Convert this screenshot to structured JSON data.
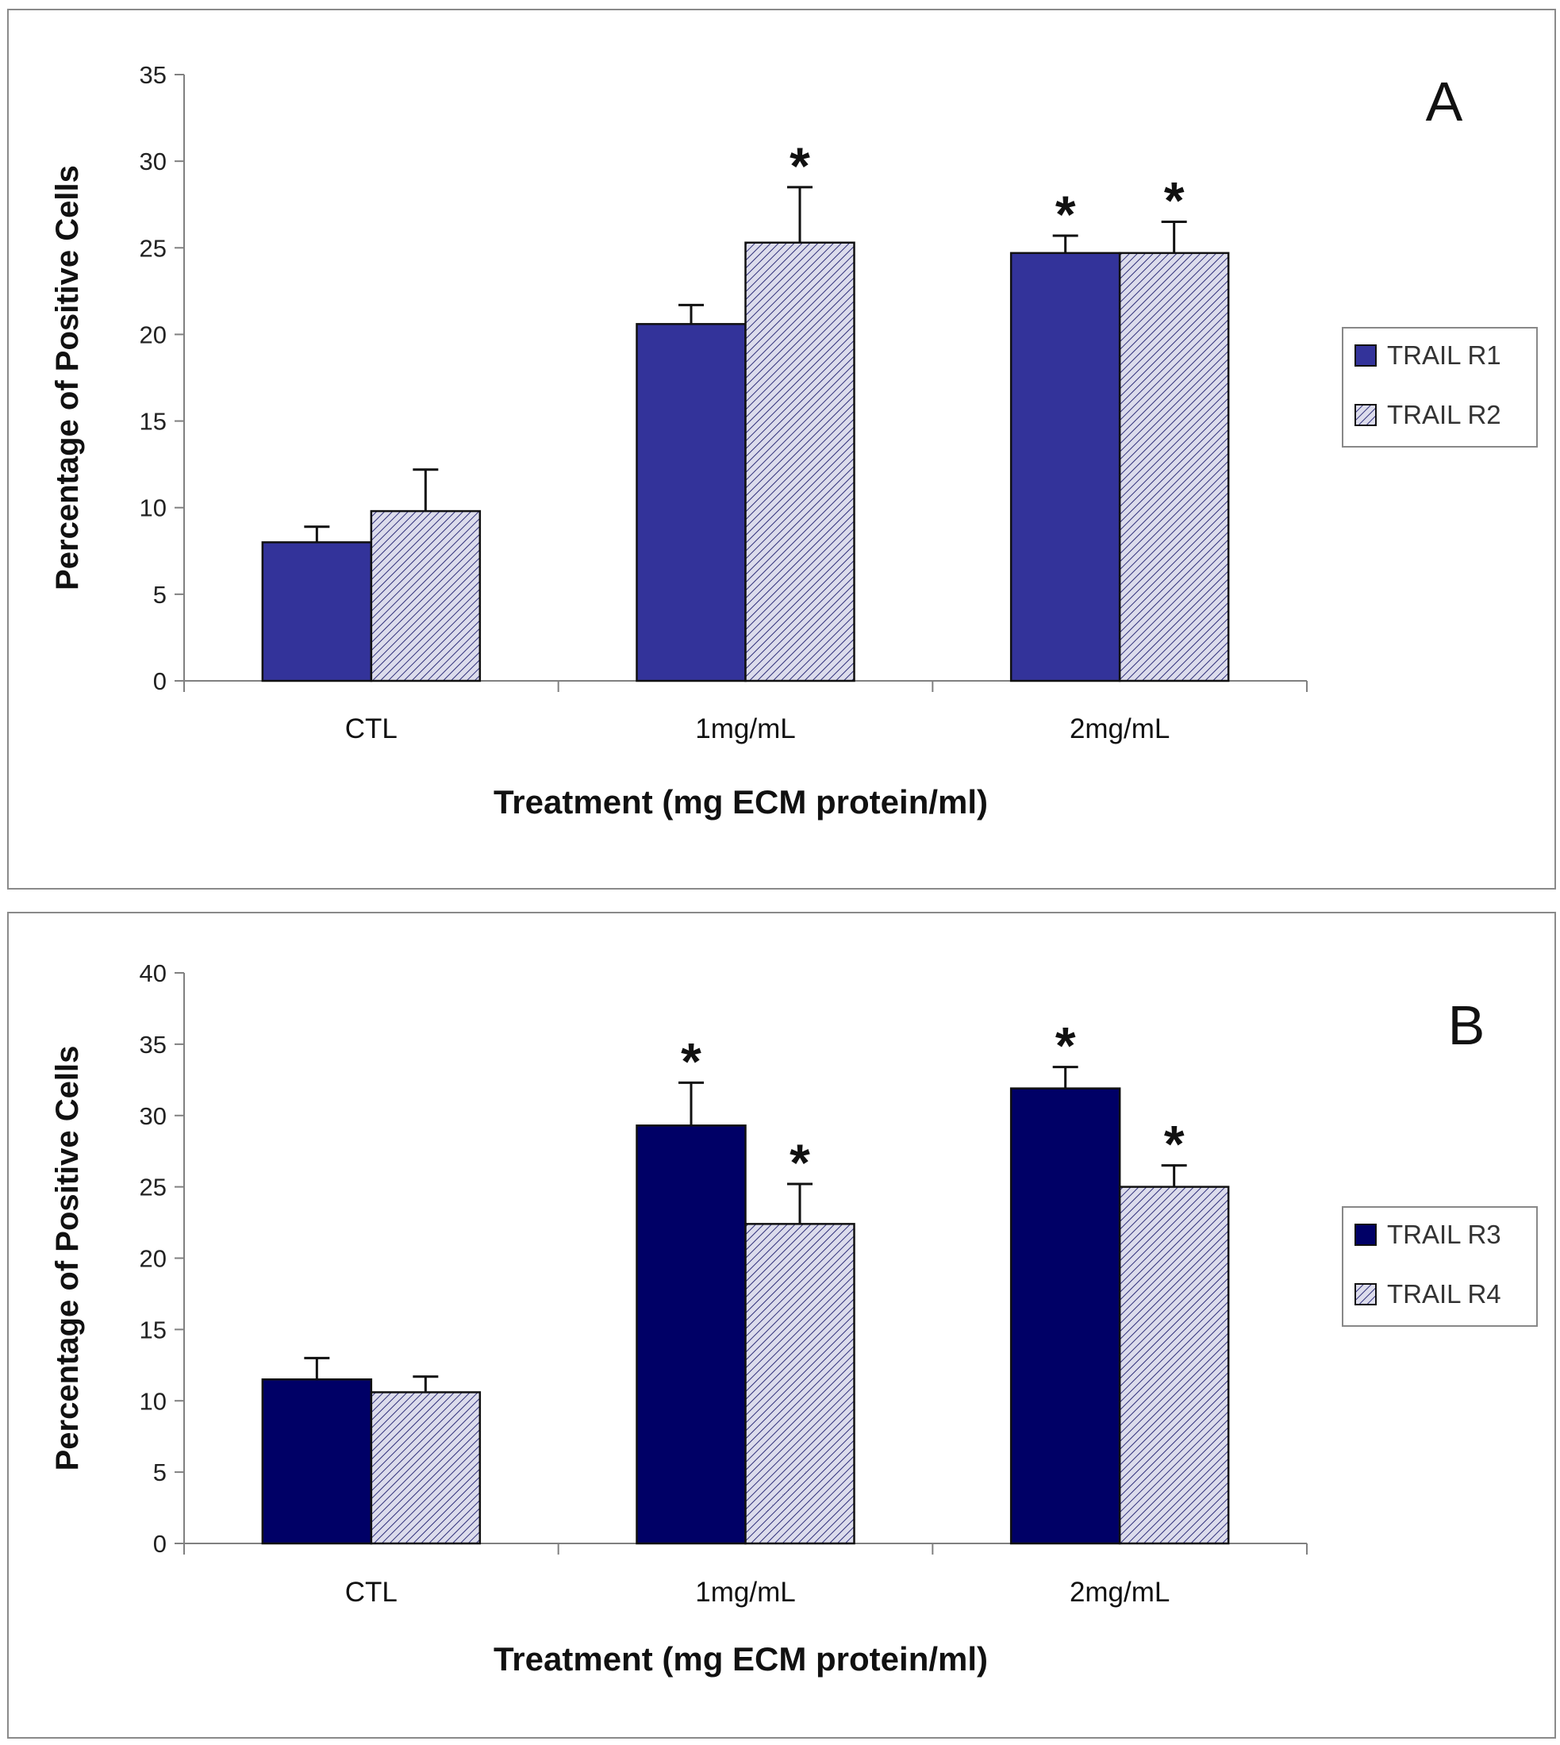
{
  "chart_data": [
    {
      "type": "bar",
      "panel_label": "A",
      "categories": [
        "CTL",
        "1mg/mL",
        "2mg/mL"
      ],
      "series": [
        {
          "name": "TRAIL R1",
          "values": [
            8.0,
            20.6,
            24.7
          ],
          "errors": [
            0.9,
            1.1,
            1.0
          ],
          "significant": [
            false,
            false,
            true
          ],
          "fill": "#33339a",
          "pattern": false
        },
        {
          "name": "TRAIL R2",
          "values": [
            9.8,
            25.3,
            24.7
          ],
          "errors": [
            2.4,
            3.2,
            1.8
          ],
          "significant": [
            false,
            true,
            true
          ],
          "fill": "#c8c8e0",
          "pattern": true
        }
      ],
      "ylabel": "Percentage of Positive Cells",
      "xlabel": "Treatment (mg ECM protein/ml)",
      "ylim": [
        0,
        35
      ],
      "yticks": [
        0,
        5,
        10,
        15,
        20,
        25,
        30,
        35
      ],
      "legend_position": "right",
      "significance_marker": "*"
    },
    {
      "type": "bar",
      "panel_label": "B",
      "categories": [
        "CTL",
        "1mg/mL",
        "2mg/mL"
      ],
      "series": [
        {
          "name": "TRAIL R3",
          "values": [
            11.5,
            29.3,
            31.9
          ],
          "errors": [
            1.5,
            3.0,
            1.5
          ],
          "significant": [
            false,
            true,
            true
          ],
          "fill": "#000066",
          "pattern": false
        },
        {
          "name": "TRAIL R4",
          "values": [
            10.6,
            22.4,
            25.0
          ],
          "errors": [
            1.1,
            2.8,
            1.5
          ],
          "significant": [
            false,
            true,
            true
          ],
          "fill": "#c8c8e0",
          "pattern": true
        }
      ],
      "ylabel": "Percentage of Positive Cells",
      "xlabel": "Treatment (mg ECM protein/ml)",
      "ylim": [
        0,
        40
      ],
      "yticks": [
        0,
        5,
        10,
        15,
        20,
        25,
        30,
        35,
        40
      ],
      "legend_position": "right",
      "significance_marker": "*"
    }
  ]
}
